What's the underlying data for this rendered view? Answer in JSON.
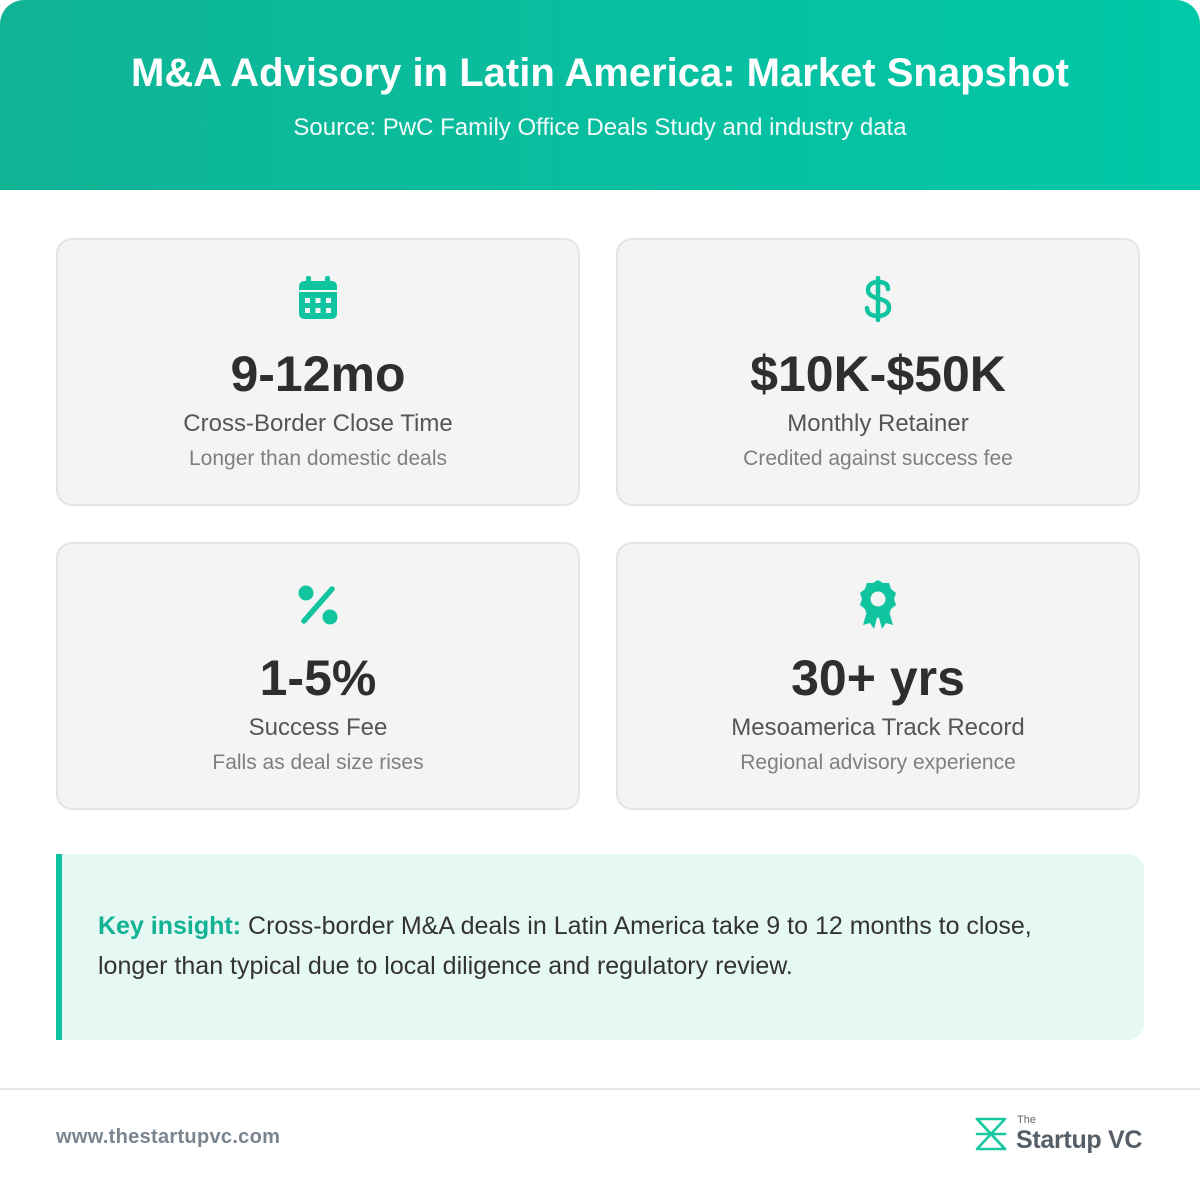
{
  "header": {
    "title": "M&A Advisory in Latin America: Market Snapshot",
    "subtitle": "Source: PwC Family Office Deals Study and industry data"
  },
  "stats": [
    {
      "icon": "calendar-icon",
      "value": "9-12mo",
      "label": "Cross-Border Close Time",
      "note": "Longer than domestic deals"
    },
    {
      "icon": "dollar-icon",
      "value": "$10K-$50K",
      "label": "Monthly Retainer",
      "note": "Credited against success fee"
    },
    {
      "icon": "percent-icon",
      "value": "1-5%",
      "label": "Success Fee",
      "note": "Falls as deal size rises"
    },
    {
      "icon": "award-icon",
      "value": "30+ yrs",
      "label": "Mesoamerica Track Record",
      "note": "Regional advisory experience"
    }
  ],
  "insight": {
    "lead": "Key insight:",
    "text": " Cross-border M&A deals in Latin America take 9 to 12 months to close, longer than typical due to local diligence and regulatory review."
  },
  "footer": {
    "url": "www.thestartupvc.com",
    "logo_small": "The",
    "logo_name": "Startup VC"
  },
  "colors": {
    "accent": "#10c4a0",
    "header_start": "#10b495",
    "header_end": "#00c8a8",
    "insight_bg": "#e6f8f4"
  }
}
